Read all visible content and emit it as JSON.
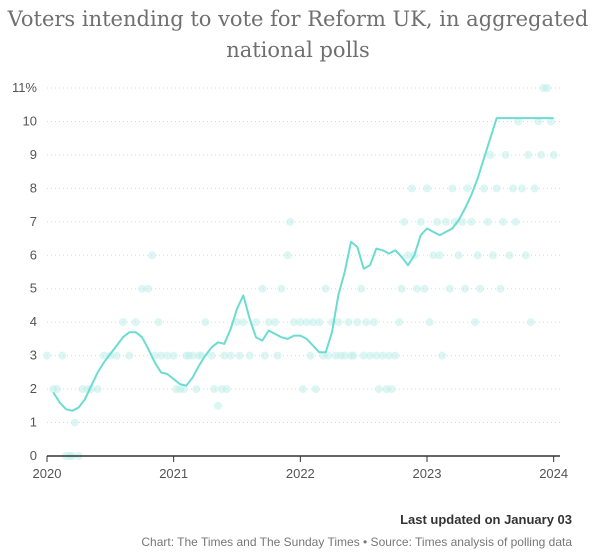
{
  "chart_data": {
    "type": "scatter",
    "title": "Voters intending to vote for Reform UK, in aggregated national polls",
    "xlabel": "",
    "ylabel": "",
    "x_ticks": [
      "2020",
      "2021",
      "2022",
      "2023",
      "2024"
    ],
    "y_ticks": [
      "0",
      "1",
      "2",
      "3",
      "4",
      "5",
      "6",
      "7",
      "8",
      "9",
      "10",
      "11%"
    ],
    "xlim": [
      2020,
      2024.05
    ],
    "ylim": [
      0,
      11
    ],
    "grid": "horizontal",
    "colors": {
      "line": "#6cdcd2",
      "points": "#bdeeea",
      "axis": "#333333",
      "grid": "#d9d9d9"
    },
    "series": [
      {
        "type": "line",
        "x": [
          2020.05,
          2020.1,
          2020.15,
          2020.2,
          2020.25,
          2020.3,
          2020.35,
          2020.4,
          2020.45,
          2020.5,
          2020.55,
          2020.6,
          2020.65,
          2020.7,
          2020.75,
          2020.8,
          2020.85,
          2020.9,
          2020.95,
          2021.0,
          2021.05,
          2021.1,
          2021.15,
          2021.2,
          2021.25,
          2021.3,
          2021.35,
          2021.4,
          2021.45,
          2021.5,
          2021.55,
          2021.6,
          2021.65,
          2021.7,
          2021.75,
          2021.8,
          2021.85,
          2021.9,
          2021.95,
          2022.0,
          2022.05,
          2022.1,
          2022.15,
          2022.2,
          2022.25,
          2022.3,
          2022.35,
          2022.4,
          2022.45,
          2022.5,
          2022.55,
          2022.6,
          2022.65,
          2022.7,
          2022.75,
          2022.8,
          2022.85,
          2022.9,
          2022.95,
          2023.0,
          2023.05,
          2023.1,
          2023.15,
          2023.2,
          2023.25,
          2023.3,
          2023.35,
          2023.4,
          2023.45,
          2023.5,
          2023.55,
          2023.6,
          2023.65,
          2023.7,
          2023.75,
          2023.8,
          2023.85,
          2023.9,
          2023.95,
          2024.0
        ],
        "y": [
          1.9,
          1.6,
          1.4,
          1.35,
          1.45,
          1.7,
          2.1,
          2.5,
          2.8,
          3.05,
          3.3,
          3.55,
          3.7,
          3.7,
          3.55,
          3.2,
          2.8,
          2.5,
          2.45,
          2.3,
          2.15,
          2.1,
          2.35,
          2.7,
          3.0,
          3.25,
          3.4,
          3.35,
          3.8,
          4.4,
          4.8,
          4.1,
          3.55,
          3.45,
          3.75,
          3.65,
          3.55,
          3.5,
          3.6,
          3.6,
          3.5,
          3.3,
          3.1,
          3.1,
          3.7,
          4.8,
          5.5,
          6.4,
          6.25,
          5.6,
          5.7,
          6.2,
          6.15,
          6.05,
          6.15,
          5.95,
          5.7,
          6.0,
          6.6,
          6.8,
          6.7,
          6.6,
          6.7,
          6.8,
          7.05,
          7.4,
          7.8,
          8.3,
          8.9,
          9.5,
          10.1,
          10.1,
          10.1,
          10.1,
          10.1,
          10.1,
          10.1,
          10.1,
          10.1,
          10.1
        ]
      },
      {
        "type": "scatter",
        "points": [
          [
            2020.0,
            3
          ],
          [
            2020.05,
            2
          ],
          [
            2020.08,
            2
          ],
          [
            2020.12,
            3
          ],
          [
            2020.15,
            0
          ],
          [
            2020.18,
            0
          ],
          [
            2020.2,
            0
          ],
          [
            2020.22,
            1
          ],
          [
            2020.25,
            0
          ],
          [
            2020.28,
            2
          ],
          [
            2020.32,
            2
          ],
          [
            2020.35,
            2
          ],
          [
            2020.4,
            2
          ],
          [
            2020.45,
            3
          ],
          [
            2020.5,
            3
          ],
          [
            2020.55,
            3
          ],
          [
            2020.6,
            4
          ],
          [
            2020.65,
            3
          ],
          [
            2020.7,
            4
          ],
          [
            2020.75,
            5
          ],
          [
            2020.8,
            5
          ],
          [
            2020.83,
            6
          ],
          [
            2020.85,
            3
          ],
          [
            2020.88,
            4
          ],
          [
            2020.9,
            3
          ],
          [
            2020.95,
            3
          ],
          [
            2021.0,
            3
          ],
          [
            2021.02,
            2
          ],
          [
            2021.05,
            2
          ],
          [
            2021.08,
            2
          ],
          [
            2021.1,
            3
          ],
          [
            2021.12,
            3
          ],
          [
            2021.15,
            3
          ],
          [
            2021.18,
            2
          ],
          [
            2021.2,
            3
          ],
          [
            2021.22,
            3
          ],
          [
            2021.25,
            4
          ],
          [
            2021.3,
            3
          ],
          [
            2021.32,
            2
          ],
          [
            2021.35,
            1.5
          ],
          [
            2021.38,
            2
          ],
          [
            2021.4,
            3
          ],
          [
            2021.42,
            2
          ],
          [
            2021.45,
            3
          ],
          [
            2021.5,
            4
          ],
          [
            2021.52,
            3
          ],
          [
            2021.55,
            4
          ],
          [
            2021.6,
            3
          ],
          [
            2021.65,
            4
          ],
          [
            2021.7,
            5
          ],
          [
            2021.72,
            3
          ],
          [
            2021.75,
            4
          ],
          [
            2021.8,
            4
          ],
          [
            2021.82,
            3
          ],
          [
            2021.85,
            5
          ],
          [
            2021.9,
            6
          ],
          [
            2021.92,
            7
          ],
          [
            2021.95,
            4
          ],
          [
            2022.0,
            4
          ],
          [
            2022.02,
            2
          ],
          [
            2022.05,
            4
          ],
          [
            2022.08,
            3
          ],
          [
            2022.1,
            4
          ],
          [
            2022.12,
            2
          ],
          [
            2022.15,
            4
          ],
          [
            2022.18,
            3
          ],
          [
            2022.2,
            5
          ],
          [
            2022.22,
            3
          ],
          [
            2022.25,
            4
          ],
          [
            2022.28,
            3
          ],
          [
            2022.3,
            4
          ],
          [
            2022.32,
            3
          ],
          [
            2022.35,
            3
          ],
          [
            2022.38,
            4
          ],
          [
            2022.4,
            3
          ],
          [
            2022.42,
            3
          ],
          [
            2022.45,
            4
          ],
          [
            2022.48,
            5
          ],
          [
            2022.5,
            3
          ],
          [
            2022.52,
            4
          ],
          [
            2022.55,
            3
          ],
          [
            2022.58,
            4
          ],
          [
            2022.6,
            3
          ],
          [
            2022.62,
            2
          ],
          [
            2022.65,
            3
          ],
          [
            2022.68,
            2
          ],
          [
            2022.7,
            3
          ],
          [
            2022.72,
            2
          ],
          [
            2022.75,
            3
          ],
          [
            2022.78,
            4
          ],
          [
            2022.8,
            5
          ],
          [
            2022.82,
            7
          ],
          [
            2022.85,
            6
          ],
          [
            2022.88,
            8
          ],
          [
            2022.9,
            6
          ],
          [
            2022.92,
            5
          ],
          [
            2022.95,
            7
          ],
          [
            2022.98,
            5
          ],
          [
            2023.0,
            8
          ],
          [
            2023.02,
            4
          ],
          [
            2023.05,
            6
          ],
          [
            2023.08,
            7
          ],
          [
            2023.1,
            6
          ],
          [
            2023.12,
            3
          ],
          [
            2023.15,
            7
          ],
          [
            2023.18,
            5
          ],
          [
            2023.2,
            8
          ],
          [
            2023.22,
            7
          ],
          [
            2023.25,
            6
          ],
          [
            2023.28,
            7
          ],
          [
            2023.3,
            5
          ],
          [
            2023.32,
            8
          ],
          [
            2023.35,
            7
          ],
          [
            2023.38,
            4
          ],
          [
            2023.4,
            6
          ],
          [
            2023.42,
            5
          ],
          [
            2023.45,
            8
          ],
          [
            2023.48,
            7
          ],
          [
            2023.5,
            9
          ],
          [
            2023.52,
            6
          ],
          [
            2023.55,
            8
          ],
          [
            2023.58,
            5
          ],
          [
            2023.6,
            7
          ],
          [
            2023.62,
            9
          ],
          [
            2023.65,
            6
          ],
          [
            2023.68,
            8
          ],
          [
            2023.7,
            7
          ],
          [
            2023.72,
            10
          ],
          [
            2023.75,
            8
          ],
          [
            2023.78,
            6
          ],
          [
            2023.8,
            9
          ],
          [
            2023.82,
            4
          ],
          [
            2023.85,
            8
          ],
          [
            2023.88,
            10
          ],
          [
            2023.9,
            9
          ],
          [
            2023.92,
            11
          ],
          [
            2023.95,
            11
          ],
          [
            2023.98,
            10
          ],
          [
            2024.0,
            9
          ]
        ]
      }
    ]
  },
  "footer": {
    "last_updated": "Last updated on January 03",
    "source": "Chart: The Times and The Sunday Times • Source: Times analysis of polling data"
  }
}
